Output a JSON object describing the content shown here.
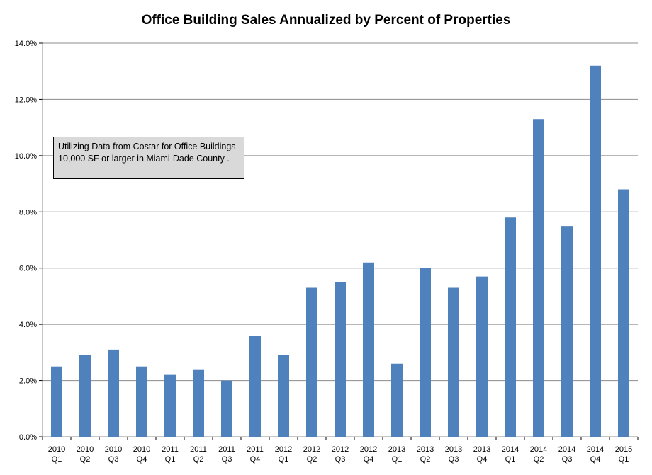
{
  "chart_data": {
    "type": "bar",
    "title": "Office Building Sales Annualized by Percent of Properties",
    "annotation": "Utilizing Data from Costar for Office Buildings 10,000 SF or larger in Miami-Dade County .",
    "categories": [
      [
        "2010",
        "Q1"
      ],
      [
        "2010",
        "Q2"
      ],
      [
        "2010",
        "Q3"
      ],
      [
        "2010",
        "Q4"
      ],
      [
        "2011",
        "Q1"
      ],
      [
        "2011",
        "Q2"
      ],
      [
        "2011",
        "Q3"
      ],
      [
        "2011",
        "Q4"
      ],
      [
        "2012",
        "Q1"
      ],
      [
        "2012",
        "Q2"
      ],
      [
        "2012",
        "Q3"
      ],
      [
        "2012",
        "Q4"
      ],
      [
        "2013",
        "Q1"
      ],
      [
        "2013",
        "Q2"
      ],
      [
        "2013",
        "Q3"
      ],
      [
        "2013",
        "Q4"
      ],
      [
        "2014",
        "Q1"
      ],
      [
        "2014",
        "Q2"
      ],
      [
        "2014",
        "Q3"
      ],
      [
        "2014",
        "Q4"
      ],
      [
        "2015",
        "Q1"
      ]
    ],
    "values": [
      2.5,
      2.9,
      3.1,
      2.5,
      2.2,
      2.4,
      2.0,
      3.6,
      2.9,
      5.3,
      5.5,
      6.2,
      2.6,
      6.0,
      5.3,
      5.7,
      7.8,
      11.3,
      7.5,
      13.2,
      8.8
    ],
    "ylim": [
      0,
      14
    ],
    "yticks": [
      "0.0%",
      "2.0%",
      "4.0%",
      "6.0%",
      "8.0%",
      "10.0%",
      "12.0%",
      "14.0%"
    ],
    "grid": true,
    "bar_color": "#4f81bd"
  }
}
